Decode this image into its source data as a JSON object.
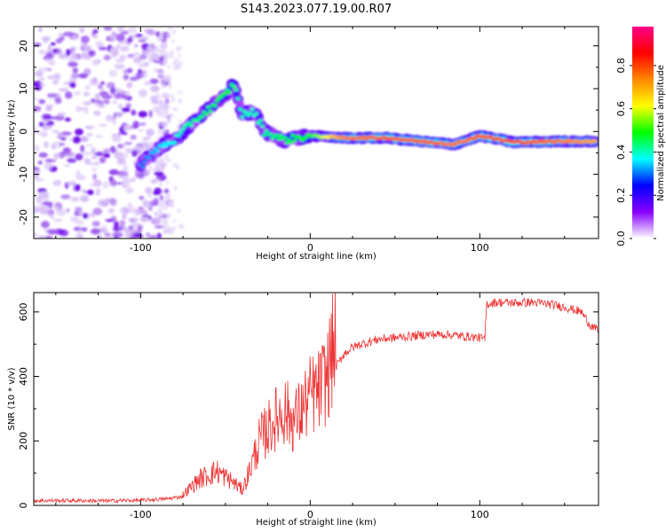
{
  "chart_data": [
    {
      "type": "heatmap",
      "title": "S143.2023.077.19.00.R07",
      "xlabel": "Height of straight line (km)",
      "ylabel": "Frequency (Hz)",
      "xlim": [
        -163,
        170
      ],
      "ylim": [
        -25,
        24.5
      ],
      "x_ticks": [
        -100,
        0,
        100
      ],
      "x_tick_labels": [
        "-100",
        "0",
        "100"
      ],
      "y_ticks": [
        -20,
        -10,
        0,
        10,
        20
      ],
      "y_tick_labels": [
        "-20",
        "-10",
        "0",
        "10",
        "20"
      ],
      "colorbar": {
        "label": "Normalized spectral amplitude",
        "range": [
          0,
          0.98
        ],
        "ticks": [
          0.0,
          0.2,
          0.4,
          0.6,
          0.8
        ],
        "tick_labels": [
          "0.0",
          "0.2",
          "0.4",
          "0.6",
          "0.8"
        ],
        "colormap": [
          "#ffffff",
          "#8800ff",
          "#0000ff",
          "#00ffff",
          "#00ff00",
          "#ffff00",
          "#ff8800",
          "#ff0000",
          "#ff0088"
        ]
      },
      "ridge": [
        {
          "x": -100,
          "freq": -8,
          "amp": 0.3
        },
        {
          "x": -90,
          "freq": -4,
          "amp": 0.35
        },
        {
          "x": -80,
          "freq": -2,
          "amp": 0.38
        },
        {
          "x": -70,
          "freq": 2,
          "amp": 0.42
        },
        {
          "x": -60,
          "freq": 5,
          "amp": 0.45
        },
        {
          "x": -50,
          "freq": 8.5,
          "amp": 0.48
        },
        {
          "x": -45,
          "freq": 11,
          "amp": 0.45
        },
        {
          "x": -40,
          "freq": 4,
          "amp": 0.4
        },
        {
          "x": -33,
          "freq": 4.5,
          "amp": 0.4
        },
        {
          "x": -27,
          "freq": 0,
          "amp": 0.42
        },
        {
          "x": -15,
          "freq": -2,
          "amp": 0.45
        },
        {
          "x": 0,
          "freq": -1,
          "amp": 0.5
        },
        {
          "x": 20,
          "freq": -1.5,
          "amp": 0.75
        },
        {
          "x": 45,
          "freq": -1.5,
          "amp": 0.78
        },
        {
          "x": 70,
          "freq": -2.5,
          "amp": 0.78
        },
        {
          "x": 85,
          "freq": -3,
          "amp": 0.75
        },
        {
          "x": 100,
          "freq": -1,
          "amp": 0.78
        },
        {
          "x": 120,
          "freq": -2.5,
          "amp": 0.8
        },
        {
          "x": 150,
          "freq": -2.3,
          "amp": 0.75
        },
        {
          "x": 168,
          "freq": -2.3,
          "amp": 0.7
        }
      ]
    },
    {
      "type": "line",
      "xlabel": "Height of straight line (km)",
      "ylabel": "SNR (10 * v/v)",
      "xlim": [
        -163,
        170
      ],
      "ylim": [
        0,
        660
      ],
      "x_ticks": [
        -100,
        0,
        100
      ],
      "x_tick_labels": [
        "-100",
        "0",
        "100"
      ],
      "y_ticks": [
        0,
        200,
        400,
        600
      ],
      "y_tick_labels": [
        "0",
        "200",
        "400",
        "600"
      ],
      "series": [
        {
          "name": "SNR",
          "color": "#ee3333",
          "points": [
            [
              -163,
              15
            ],
            [
              -140,
              15
            ],
            [
              -120,
              14
            ],
            [
              -100,
              16
            ],
            [
              -85,
              20
            ],
            [
              -75,
              28
            ],
            [
              -65,
              70
            ],
            [
              -55,
              90
            ],
            [
              -45,
              60
            ],
            [
              -40,
              40
            ],
            [
              -35,
              100
            ],
            [
              -30,
              170
            ],
            [
              -25,
              200
            ],
            [
              -20,
              230
            ],
            [
              -15,
              250
            ],
            [
              -10,
              220
            ],
            [
              -5,
              250
            ],
            [
              0,
              290
            ],
            [
              5,
              300
            ],
            [
              10,
              340
            ],
            [
              14,
              420
            ],
            [
              20,
              470
            ],
            [
              25,
              490
            ],
            [
              30,
              500
            ],
            [
              40,
              515
            ],
            [
              50,
              520
            ],
            [
              60,
              525
            ],
            [
              70,
              530
            ],
            [
              80,
              530
            ],
            [
              90,
              525
            ],
            [
              100,
              520
            ],
            [
              103,
              515
            ],
            [
              104,
              625
            ],
            [
              110,
              630
            ],
            [
              120,
              628
            ],
            [
              130,
              630
            ],
            [
              140,
              625
            ],
            [
              150,
              615
            ],
            [
              160,
              600
            ],
            [
              165,
              560
            ],
            [
              170,
              540
            ]
          ]
        }
      ]
    }
  ]
}
